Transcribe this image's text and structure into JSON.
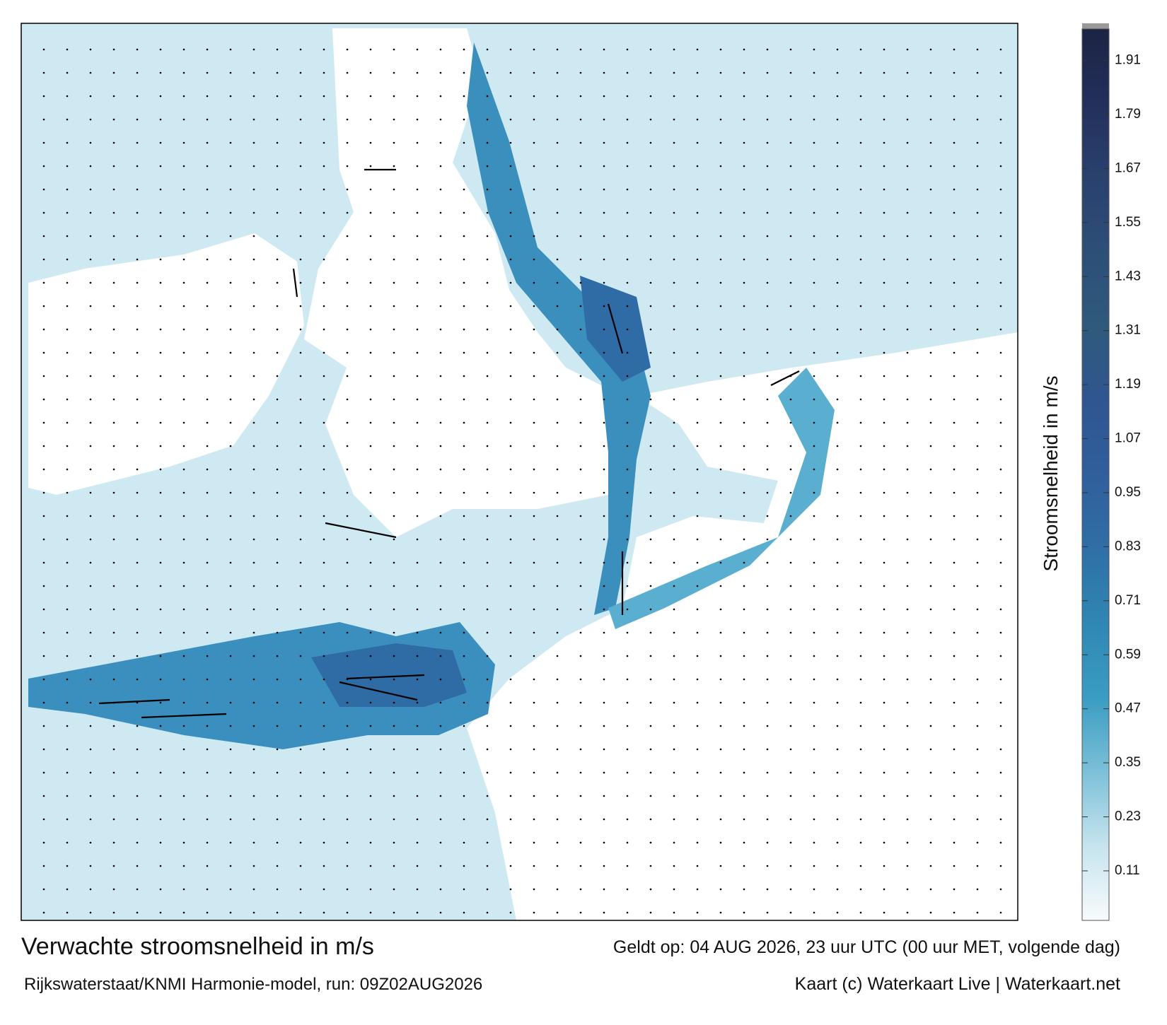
{
  "map": {
    "title": "Verwachte stroomsnelheid in m/s",
    "valid": "Geldt op: 04 AUG 2026, 23 uur UTC (00 uur MET, volgende dag)",
    "source": "Rijkswaterstaat/KNMI Harmonie-model, run: 09Z02AUG2026",
    "credit": "Kaart (c) Waterkaart Live | Waterkaart.net"
  },
  "colorbar": {
    "label": "Stroomsnelheid in m/s",
    "lim": [
      0,
      1.98
    ],
    "ticks": [
      0.11,
      0.23,
      0.35,
      0.47,
      0.59,
      0.71,
      0.83,
      0.95,
      1.07,
      1.19,
      1.31,
      1.43,
      1.55,
      1.67,
      1.79,
      1.91
    ],
    "colors": [
      "#f7fbfc",
      "#c6e4ee",
      "#7cc0d8",
      "#3a9cc2",
      "#2f87b3",
      "#2f6fa6",
      "#2f5f9c",
      "#2f5690",
      "#2f5a7c",
      "#2c4f78",
      "#2a416e",
      "#232f5c",
      "#1c2444"
    ]
  }
}
